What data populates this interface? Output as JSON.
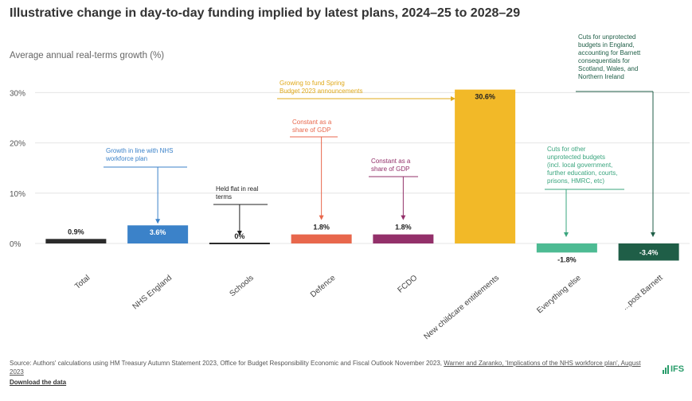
{
  "header": {
    "title": "Illustrative change in day-to-day funding implied by latest plans, 2024–25 to 2028–29",
    "subtitle": "Average annual real-terms growth (%)"
  },
  "chart_data": {
    "type": "bar",
    "categories": [
      "Total",
      "NHS England",
      "Schools",
      "Defence",
      "FCDO",
      "New childcare entitlements",
      "Everything else",
      "...post Barnett"
    ],
    "values": [
      0.9,
      3.6,
      0,
      1.8,
      1.8,
      30.6,
      -1.8,
      -3.4
    ],
    "value_labels": [
      "0.9%",
      "3.6%",
      "0%",
      "1.8%",
      "1.8%",
      "30.6%",
      "-1.8%",
      "-3.4%"
    ],
    "colors": [
      "#2b2b2b",
      "#3b82c9",
      "#2b2b2b",
      "#e8674c",
      "#93306a",
      "#f2b928",
      "#4dbb93",
      "#1f5e47"
    ],
    "ylim": [
      -5,
      33
    ],
    "yticks": [
      0,
      10,
      20,
      30
    ],
    "ytick_labels": [
      "0%",
      "10%",
      "20%",
      "30%"
    ],
    "grid": true,
    "annotations": [
      {
        "category": "NHS England",
        "text": [
          "Growth in line with NHS",
          "workforce plan"
        ],
        "color": "#3b82c9"
      },
      {
        "category": "Schools",
        "text": [
          "Held flat in real",
          "terms"
        ],
        "color": "#222222"
      },
      {
        "category": "Defence",
        "text": [
          "Constant as a",
          "share of GDP"
        ],
        "color": "#e8674c"
      },
      {
        "category": "FCDO",
        "text": [
          "Constant as a",
          "share of GDP"
        ],
        "color": "#93306a"
      },
      {
        "category": "New childcare entitlements",
        "text": [
          "Growing to fund Spring",
          "Budget 2023 announcements"
        ],
        "color": "#e0a91a"
      },
      {
        "category": "Everything else",
        "text": [
          "Cuts for other",
          "unprotected budgets",
          "(incl. local government,",
          "further education, courts,",
          "prisons, HMRC, etc)"
        ],
        "color": "#3aa57e"
      },
      {
        "category": "...post Barnett",
        "text": [
          "Cuts for unprotected",
          "budgets in England,",
          "accounting for Barnett",
          "consequentials for",
          "Scotland, Wales, and",
          "Northern Ireland"
        ],
        "color": "#1f5e47"
      }
    ]
  },
  "footer": {
    "source_prefix": "Source: Authors' calculations using HM Treasury Autumn Statement 2023, Office for Budget Responsibility Economic and Fiscal Outlook November 2023, ",
    "source_link": "Warner and Zaranko, 'Implications of the NHS workforce plan', August 2023",
    "download": "Download the data",
    "logo": "IFS"
  }
}
